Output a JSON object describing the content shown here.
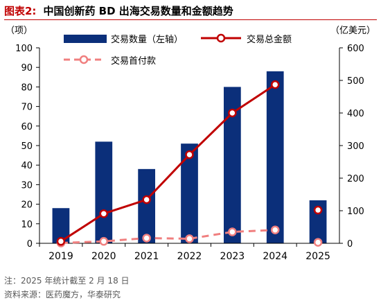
{
  "figure": {
    "label": "图表2:",
    "title": "中国创新药 BD 出海交易数量和金额趋势",
    "note": "注：2025 年统计截至 2 月 18 日",
    "source": "资料来源：医药魔方，华泰研究"
  },
  "colors": {
    "bar": "#0b2f7a",
    "total_line": "#c00000",
    "upfront_line": "#f07f7f",
    "title": "#c00000"
  },
  "chart_data": {
    "type": "bar",
    "categories": [
      "2019",
      "2020",
      "2021",
      "2022",
      "2023",
      "2024",
      "2025"
    ],
    "y_left": {
      "unit": "（项）",
      "ylim": [
        0,
        100
      ],
      "ticks": [
        0,
        10,
        20,
        30,
        40,
        50,
        60,
        70,
        80,
        90,
        100
      ]
    },
    "y_right": {
      "unit": "（亿美元）",
      "ylim": [
        0,
        600
      ],
      "ticks": [
        0,
        100,
        200,
        300,
        400,
        500,
        600
      ]
    },
    "grid": false,
    "legend_position": "top",
    "series": [
      {
        "name": "交易数量（左轴）",
        "type": "bar",
        "axis": "left",
        "values": [
          18,
          52,
          38,
          51,
          80,
          88,
          22
        ]
      },
      {
        "name": "交易总金额",
        "type": "line",
        "axis": "right",
        "values": [
          6,
          91,
          134,
          272,
          400,
          487,
          102
        ],
        "connect_last": false
      },
      {
        "name": "交易首付款",
        "type": "line",
        "style": "dashed",
        "axis": "right",
        "values": [
          1,
          6,
          16,
          14,
          35,
          41,
          3
        ],
        "connect_last": false
      }
    ]
  }
}
